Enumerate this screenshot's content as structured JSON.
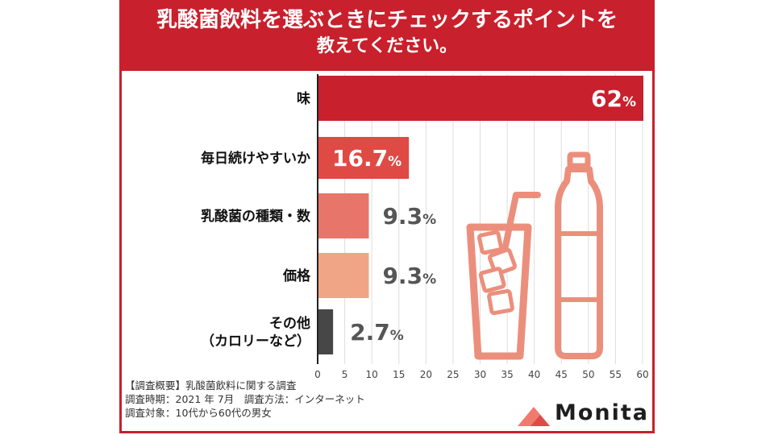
{
  "title_line1": "乳酸菌飲料を選ぶときにチェックするポイントを",
  "title_line2": "教えてください。",
  "chart_data": {
    "type": "bar",
    "orientation": "horizontal",
    "categories": [
      "味",
      "毎日続けやすいか",
      "乳酸菌の種類・数",
      "価格",
      "その他\n（カロリーなど）"
    ],
    "values": [
      62,
      16.7,
      9.3,
      9.3,
      2.7
    ],
    "value_labels": [
      "62",
      "16.7",
      "9.3",
      "9.3",
      "2.7"
    ],
    "unit": "%",
    "xlim": [
      0,
      60
    ],
    "xticks": [
      0,
      5,
      10,
      15,
      20,
      25,
      30,
      35,
      40,
      45,
      50,
      55,
      60
    ],
    "grid": true,
    "colors": [
      "#c8202c",
      "#e04a45",
      "#e8756a",
      "#f0a587",
      "#474747"
    ],
    "label_inside": [
      true,
      true,
      false,
      false,
      false
    ]
  },
  "footer": {
    "line1": "【調査概要】乳酸菌飲料に関する調査",
    "line2": "調査時期：2021 年 7月　調査方法：インターネット",
    "line3": "調査対象：10代から60代の男女"
  },
  "brand": "Monita",
  "accent_color": "#c8202c",
  "illustration_color": "#eb8f7c"
}
